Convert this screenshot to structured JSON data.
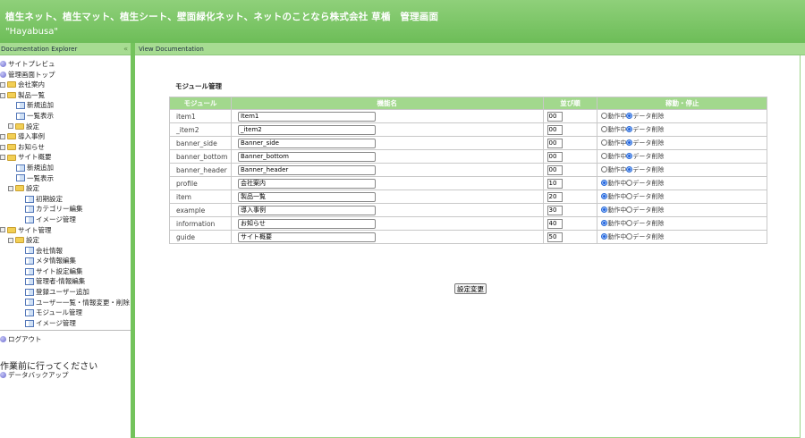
{
  "header": {
    "title": "植生ネット、植生マット、植生シート、壁面緑化ネット、ネットのことなら株式会社 草楯　管理画面",
    "subtitle": "\"Hayabusa\""
  },
  "left_panel": {
    "title": "Documentation Explorer",
    "collapse_icon": "«"
  },
  "right_panel": {
    "title": "View Documentation"
  },
  "tree": [
    {
      "label": "サイトプレビュ",
      "icon": "globe",
      "level": 0
    },
    {
      "label": "管理画面トップ",
      "icon": "globe",
      "level": 0
    },
    {
      "label": "会社案内",
      "icon": "folder",
      "level": 0,
      "expander": true
    },
    {
      "label": "製品一覧",
      "icon": "folder",
      "level": 0,
      "expander": true
    },
    {
      "label": "新規追加",
      "icon": "doc",
      "level": 2
    },
    {
      "label": "一覧表示",
      "icon": "doc",
      "level": 2
    },
    {
      "label": "設定",
      "icon": "folder",
      "level": 1,
      "expander": true
    },
    {
      "label": "導入事例",
      "icon": "folder",
      "level": 0,
      "expander": true
    },
    {
      "label": "お知らせ",
      "icon": "folder",
      "level": 0,
      "expander": true
    },
    {
      "label": "サイト概要",
      "icon": "folder",
      "level": 0,
      "expander": true
    },
    {
      "label": "新規追加",
      "icon": "doc",
      "level": 2
    },
    {
      "label": "一覧表示",
      "icon": "doc",
      "level": 2
    },
    {
      "label": "設定",
      "icon": "folder",
      "level": 1,
      "expander": true
    },
    {
      "label": "初期設定",
      "icon": "doc",
      "level": 3
    },
    {
      "label": "カテゴリー編集",
      "icon": "doc",
      "level": 3
    },
    {
      "label": "イメージ管理",
      "icon": "doc",
      "level": 3
    },
    {
      "label": "サイト管理",
      "icon": "folder",
      "level": 0,
      "expander": true
    },
    {
      "label": "設定",
      "icon": "folder",
      "level": 1,
      "expander": true
    },
    {
      "label": "会社情報",
      "icon": "doc",
      "level": 3
    },
    {
      "label": "メタ情報編集",
      "icon": "doc",
      "level": 3
    },
    {
      "label": "サイト設定編集",
      "icon": "doc",
      "level": 3
    },
    {
      "label": "管理者-情報編集",
      "icon": "doc",
      "level": 3
    },
    {
      "label": "登録ユーザー追加",
      "icon": "doc",
      "level": 3
    },
    {
      "label": "ユーザー一覧・情報変更・削除",
      "icon": "doc",
      "level": 3
    },
    {
      "label": "モジュール管理",
      "icon": "doc",
      "level": 3
    },
    {
      "label": "イメージ管理",
      "icon": "doc",
      "level": 3
    }
  ],
  "logout": "ログアウト",
  "warning_heading": "作業前に行ってください",
  "backup": "データバックアップ",
  "main": {
    "title": "モジュール管理",
    "columns": [
      "モジュール",
      "機能名",
      "並び順",
      "稼動・停止"
    ],
    "radio_labels": [
      "動作中",
      "データ削除"
    ],
    "rows": [
      {
        "module": "item1",
        "name": "Item1",
        "order": "00",
        "active": false
      },
      {
        "module": "_item2",
        "name": "_item2",
        "order": "00",
        "active": false
      },
      {
        "module": "banner_side",
        "name": "Banner_side",
        "order": "00",
        "active": false
      },
      {
        "module": "banner_bottom",
        "name": "Banner_bottom",
        "order": "00",
        "active": false
      },
      {
        "module": "banner_header",
        "name": "Banner_header",
        "order": "00",
        "active": false
      },
      {
        "module": "profile",
        "name": "会社案内",
        "order": "10",
        "active": true
      },
      {
        "module": "item",
        "name": "製品一覧",
        "order": "20",
        "active": true
      },
      {
        "module": "example",
        "name": "導入事例",
        "order": "30",
        "active": true
      },
      {
        "module": "information",
        "name": "お知らせ",
        "order": "40",
        "active": true
      },
      {
        "module": "guide",
        "name": "サイト概要",
        "order": "50",
        "active": true
      }
    ],
    "submit_label": "設定変更"
  },
  "colors": {
    "header": "#6dbd58",
    "panel_header": "#a7dc92",
    "table_header": "#a2d88d"
  }
}
